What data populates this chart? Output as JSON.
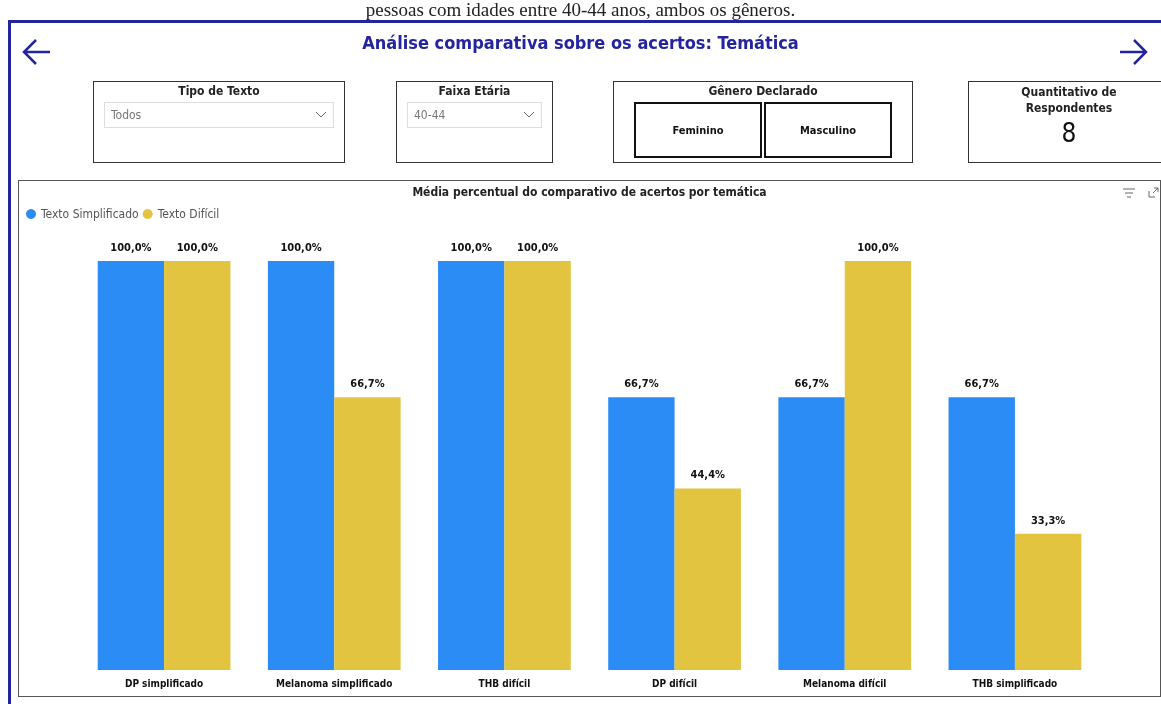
{
  "chart_data": [
    {
      "type": "other",
      "title": "Análise comparativa sobre os acertos: Temática",
      "annotations": [
        "pessoas com idades entre 40-44 anos, ambos os gêneros.",
        "Tipo de Texto",
        "Todos",
        "Faixa Etária",
        "40-44",
        "Gênero Declarado",
        "Feminino",
        "Masculino",
        "Quantitativo de Respondentes",
        "8"
      ]
    },
    {
      "type": "bar",
      "title": "Média percentual do comparativo de acertos por temática",
      "categories": [
        "DP simplificado",
        "Melanoma simplificado",
        "THB difícil",
        "DP difícil",
        "Melanoma difícil",
        "THB simplificado"
      ],
      "legend": "top left",
      "series": [
        {
          "name": "Texto Simplificado",
          "color": "#2b8cf5",
          "values": [
            100,
            100,
            100,
            66.7,
            66.7,
            66.7
          ],
          "value_labels": [
            "100,0%",
            "100,0%",
            "100,0%",
            "66,7%",
            "66,7%",
            "66,7%"
          ]
        },
        {
          "name": "Texto Difícil",
          "color": "#e2c440",
          "values": [
            100,
            66.7,
            100,
            44.4,
            100,
            33.3
          ],
          "value_labels": [
            "100,0%",
            "66,7%",
            "100,0%",
            "44,4%",
            "100,0%",
            "33,3%"
          ]
        }
      ]
    }
  ]
}
